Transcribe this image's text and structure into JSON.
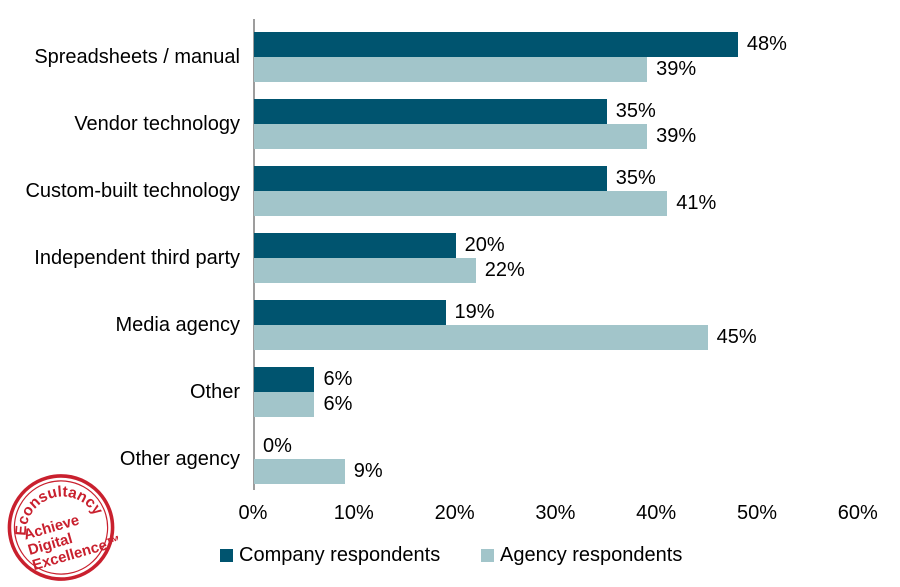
{
  "chart_data": {
    "type": "bar",
    "orientation": "horizontal",
    "title": "",
    "xlabel": "",
    "ylabel": "",
    "xlim": [
      0,
      60
    ],
    "x_ticks": [
      "0%",
      "10%",
      "20%",
      "30%",
      "40%",
      "50%",
      "60%"
    ],
    "grid": false,
    "data_labels": true,
    "value_suffix": "%",
    "legend_position": "bottom",
    "categories": [
      "Spreadsheets / manual",
      "Vendor technology",
      "Custom-built technology",
      "Independent third party",
      "Media agency",
      "Other",
      "Other agency"
    ],
    "series": [
      {
        "name": "Company respondents",
        "color": "#00546F",
        "values": [
          48,
          35,
          35,
          20,
          19,
          6,
          0
        ]
      },
      {
        "name": "Agency respondents",
        "color": "#A2C5CA",
        "values": [
          39,
          39,
          41,
          22,
          45,
          6,
          9
        ]
      }
    ]
  },
  "logo": {
    "brand": "Econsultancy",
    "tagline_lines": [
      "Achieve",
      "Digital",
      "Excellence™"
    ],
    "color": "#C9202E"
  },
  "colors": {
    "axis_line": "#9d9d9d",
    "text": "#000000",
    "background": "#ffffff"
  }
}
